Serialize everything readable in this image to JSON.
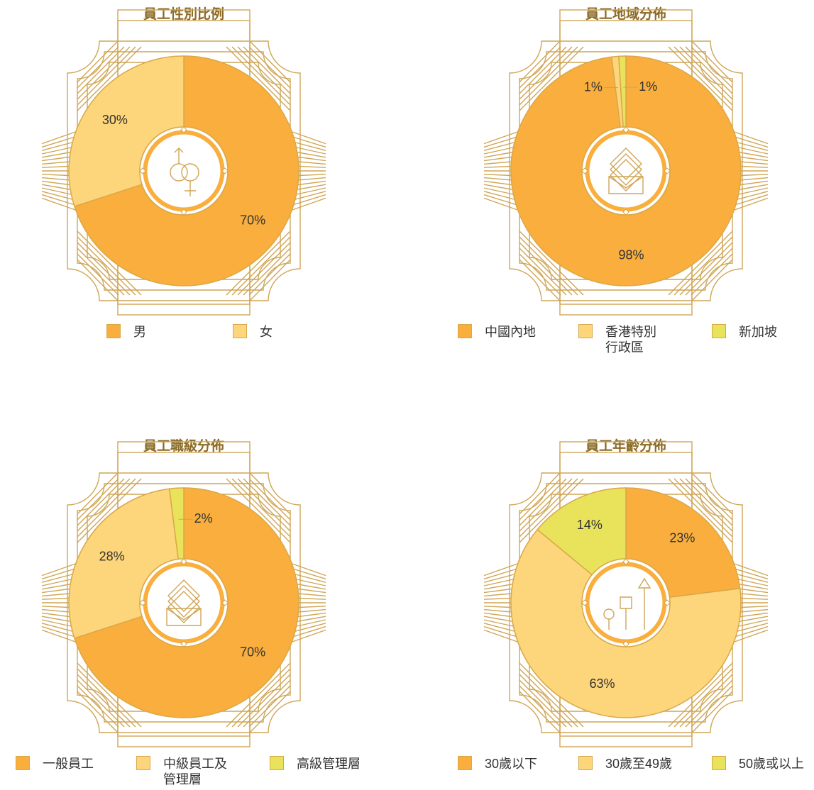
{
  "chart_data": [
    {
      "type": "pie",
      "title": "員工性別比例",
      "categories": [
        "男",
        "女"
      ],
      "values": [
        70,
        30
      ],
      "value_labels": [
        "70%",
        "30%"
      ],
      "colors": [
        "#f9ae3d",
        "#fdd57a"
      ]
    },
    {
      "type": "pie",
      "title": "員工地域分佈",
      "categories": [
        "中國內地",
        "香港特別行政區",
        "新加坡"
      ],
      "values": [
        98,
        1,
        1
      ],
      "value_labels": [
        "98%",
        "1%",
        "1%"
      ],
      "colors": [
        "#f9ae3d",
        "#fdd57a",
        "#e8e35a"
      ]
    },
    {
      "type": "pie",
      "title": "員工職級分佈",
      "categories": [
        "一般員工",
        "中級員工及管理層",
        "高級管理層"
      ],
      "values": [
        70,
        28,
        2
      ],
      "value_labels": [
        "70%",
        "28%",
        "2%"
      ],
      "colors": [
        "#f9ae3d",
        "#fdd57a",
        "#e8e35a"
      ]
    },
    {
      "type": "pie",
      "title": "員工年齡分佈",
      "categories": [
        "30歲以下",
        "30歲至49歲",
        "50歲或以上"
      ],
      "values": [
        23,
        63,
        14
      ],
      "value_labels": [
        "23%",
        "63%",
        "14%"
      ],
      "colors": [
        "#f9ae3d",
        "#fdd57a",
        "#e8e35a"
      ]
    }
  ]
}
